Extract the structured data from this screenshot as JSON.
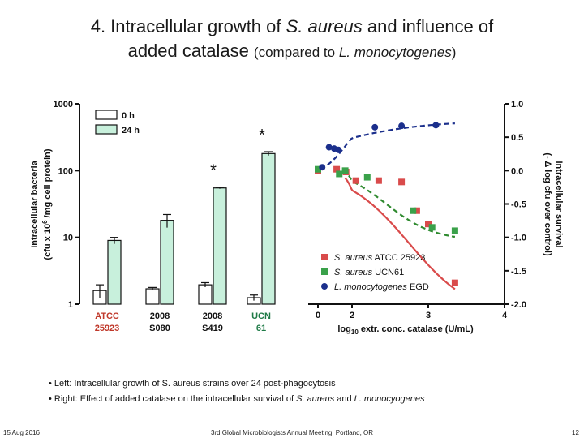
{
  "title": {
    "line1_a": "4. Intracellular growth of ",
    "line1_italic": "S. aureus",
    "line1_b": " and influence of",
    "line2_a": "added catalase ",
    "line2_small_a": "(compared to ",
    "line2_italic": "L. monocytogenes",
    "line2_small_b": ")"
  },
  "chart_data": [
    {
      "type": "bar",
      "scale": "log",
      "ylabel_line1": "Intracellular bacteria",
      "ylabel_line2a": "(cfu x 10",
      "ylabel_sup": "6",
      "ylabel_line2b": " /mg cell protein)",
      "yticks": [
        "1",
        "10",
        "100",
        "1000"
      ],
      "ylim": [
        1,
        1000
      ],
      "categories": [
        {
          "line1": "ATCC",
          "line2": "25923",
          "color": "#c0392b"
        },
        {
          "line1": "2008",
          "line2": "S080",
          "color": "#111111"
        },
        {
          "line1": "2008",
          "line2": "S419",
          "color": "#111111"
        },
        {
          "line1": "UCN",
          "line2": "61",
          "color": "#1e7a46"
        }
      ],
      "series": [
        {
          "name": "0 h",
          "fill": "#ffffff",
          "values": [
            1.6,
            1.7,
            1.95,
            1.25
          ],
          "errors": [
            0.35,
            0.08,
            0.15,
            0.12
          ]
        },
        {
          "name": "24 h",
          "fill": "#c8f0dc",
          "values": [
            9.0,
            18.0,
            55.0,
            180.0
          ],
          "errors": [
            1.0,
            4.0,
            1.5,
            12.0
          ]
        }
      ],
      "significance": [
        {
          "category": 2,
          "label": "*"
        },
        {
          "category": 3,
          "label": "*"
        }
      ]
    },
    {
      "type": "scatter",
      "xlabel_pre": "log",
      "xlabel_sub": "10",
      "xlabel_post": " extr. conc. catalase (U/mL)",
      "xticks": [
        "0",
        "2",
        "3",
        "4"
      ],
      "xlim": [
        0,
        4
      ],
      "yticks": [
        "1.0",
        "0.5",
        "0.0",
        "-0.5",
        "-1.0",
        "-1.5",
        "-2.0"
      ],
      "ylim": [
        -2.0,
        1.0
      ],
      "ylabel_line1": "Intracellular survival",
      "ylabel_line2": "(- Δ log cfu over control)",
      "series": [
        {
          "name": "S. aureus",
          "name_rest": " ATCC 25923",
          "color": "#d94b4b",
          "marker": "square",
          "curve": "solid",
          "x": [
            0,
            1.1,
            1.65,
            2.05,
            2.35,
            2.65,
            2.85,
            3.0,
            3.35
          ],
          "y": [
            0.0,
            0.02,
            -0.02,
            -0.15,
            -0.15,
            -0.17,
            -0.6,
            -0.8,
            -1.68
          ]
        },
        {
          "name": "S. aureus",
          "name_rest": " UCN61",
          "color": "#3aa14a",
          "marker": "square",
          "curve": "dashed",
          "x": [
            0,
            1.25,
            1.6,
            2.2,
            2.8,
            3.05,
            3.35
          ],
          "y": [
            0.02,
            -0.05,
            0.0,
            -0.1,
            -0.6,
            -0.85,
            -0.9
          ]
        },
        {
          "name": "L. monocytogenes",
          "name_rest": " EGD",
          "color": "#1b2f8c",
          "marker": "circle",
          "curve": "dashed",
          "x": [
            0.25,
            0.65,
            0.95,
            1.2,
            2.3,
            2.65,
            3.1
          ],
          "y": [
            0.05,
            0.35,
            0.33,
            0.31,
            0.65,
            0.67,
            0.68
          ]
        }
      ]
    }
  ],
  "bullets": [
    {
      "text": "• Left: Intracellular growth of S. aureus strains over 24 post-phagocytosis"
    },
    {
      "text_a": "• Right: Effect of added catalase on the intracellular survival of ",
      "italic_a": "S. aureus",
      "text_b": " and ",
      "italic_b": "L. monocyogenes"
    }
  ],
  "footer": {
    "date": "15 Aug 2016",
    "meeting": "3rd Global Microbiologists Annual Meeting, Portland, OR",
    "page": "12"
  }
}
